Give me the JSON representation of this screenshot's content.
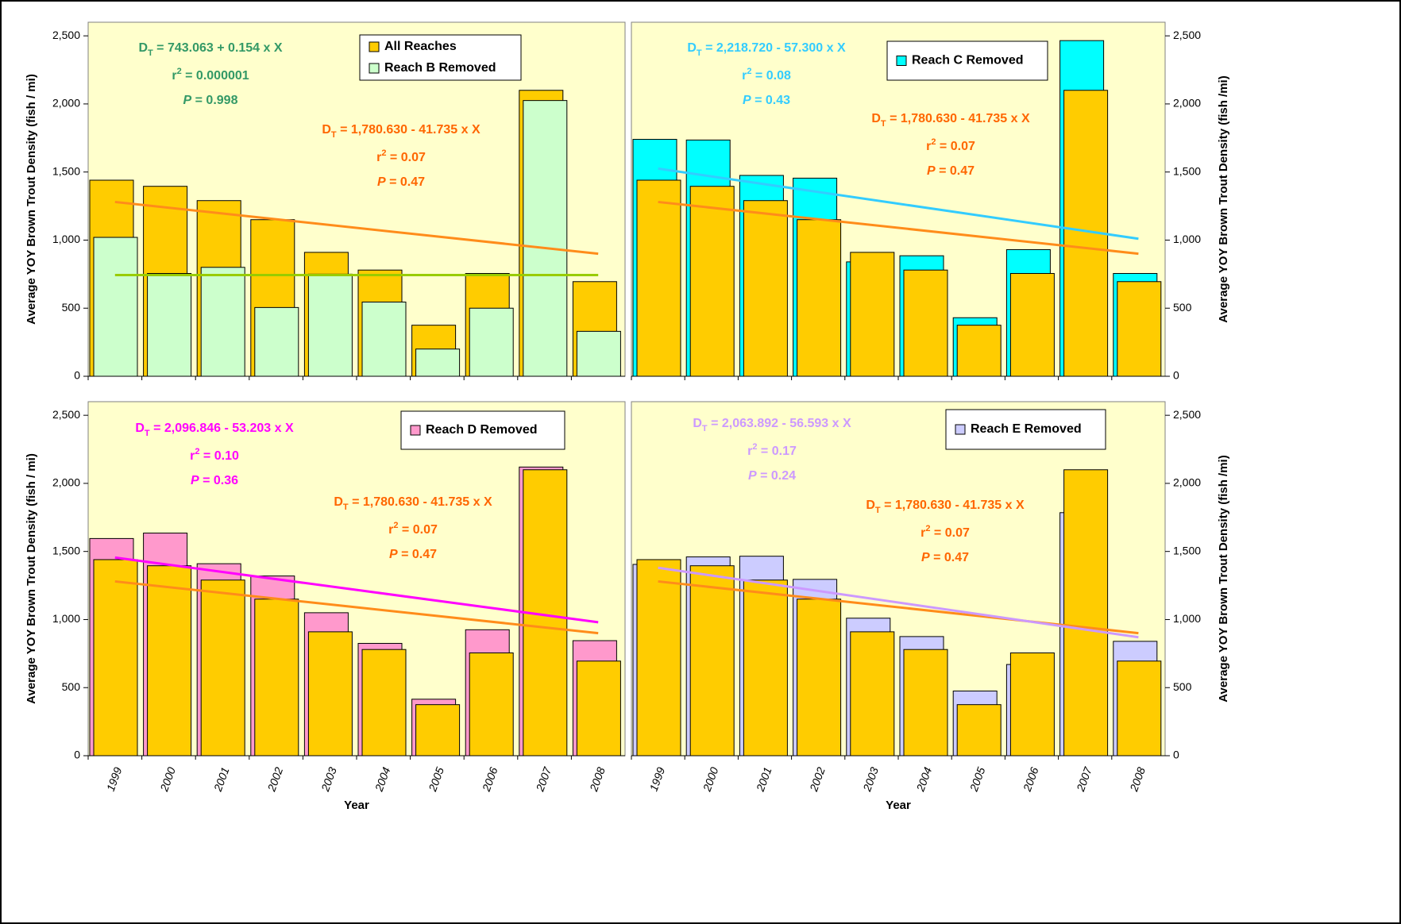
{
  "chart_data": [
    {
      "type": "bar",
      "ylabel": "Average YOY Brown Trout Density (fish / mi)",
      "categories": [
        null,
        null,
        null,
        null,
        null,
        null,
        null,
        null,
        null,
        null
      ],
      "ylim": [
        0,
        2600
      ],
      "yticks": [
        0,
        500,
        {
          "value": 1000,
          "label": "1,000"
        },
        {
          "value": 1500,
          "label": "1,500"
        },
        {
          "value": 2000,
          "label": "2,000"
        },
        {
          "value": 2500,
          "label": "2,500"
        }
      ],
      "series": [
        {
          "name": "All Reaches",
          "color": "#ffcc00",
          "values": [
            1440,
            1395,
            1290,
            1150,
            910,
            780,
            375,
            755,
            2100,
            695
          ]
        },
        {
          "name": "Reach B Removed",
          "color": "#ccffcc",
          "values": [
            1020,
            755,
            800,
            505,
            750,
            545,
            200,
            500,
            2025,
            330
          ]
        }
      ],
      "trendlines": [
        {
          "color": "#ff8c1a",
          "values": [
            1280,
            900
          ]
        },
        {
          "color": "#99cc00",
          "values": [
            743,
            743
          ]
        }
      ],
      "equations": [
        {
          "color": "#339966",
          "d": [
            "D",
            "T",
            " = 743.063 + 0.154 x X"
          ],
          "r": [
            "r",
            "2",
            " = 0.000001"
          ],
          "p": [
            "P",
            " = 0.998"
          ]
        },
        {
          "color": "#ff6600",
          "d": [
            "D",
            "T",
            " = 1,780.630 - 41.735 x X"
          ],
          "r": [
            "r",
            "2",
            " = 0.07"
          ],
          "p": [
            "P",
            " = 0.47"
          ]
        }
      ]
    },
    {
      "type": "bar",
      "ylabel": "Average YOY Brown Trout Density (fish /mi)",
      "categories": [
        null,
        null,
        null,
        null,
        null,
        null,
        null,
        null,
        null,
        null
      ],
      "ylim": [
        0,
        2600
      ],
      "yticks": [
        0,
        500,
        {
          "value": 1000,
          "label": "1,000"
        },
        {
          "value": 1500,
          "label": "1,500"
        },
        {
          "value": 2000,
          "label": "2,000"
        },
        {
          "value": 2500,
          "label": "2,500"
        }
      ],
      "series": [
        {
          "name": "Reach C Removed",
          "color": "#00ffff",
          "values": [
            1740,
            1735,
            1475,
            1455,
            840,
            885,
            430,
            930,
            2465,
            755
          ]
        },
        {
          "color": "#ffcc00",
          "values": [
            1440,
            1395,
            1290,
            1150,
            910,
            780,
            375,
            755,
            2100,
            695
          ]
        }
      ],
      "trendlines": [
        {
          "color": "#ff8c1a",
          "values": [
            1280,
            900
          ]
        },
        {
          "color": "#33ccff",
          "values": [
            1525,
            1010
          ]
        }
      ],
      "equations": [
        {
          "color": "#33ccff",
          "d": [
            "D",
            "T",
            " = 2,218.720 - 57.300 x X"
          ],
          "r": [
            "r",
            "2",
            " = 0.08"
          ],
          "p": [
            "P",
            " = 0.43"
          ]
        },
        {
          "color": "#ff6600",
          "d": [
            "D",
            "T",
            " = 1,780.630 - 41.735 x X"
          ],
          "r": [
            "r",
            "2",
            " = 0.07"
          ],
          "p": [
            "P",
            " = 0.47"
          ]
        }
      ]
    },
    {
      "type": "bar",
      "ylabel": "Average YOY Brown Trout Density (fish / mi)",
      "xlabel": "Year",
      "categories": [
        "1999",
        "2000",
        "2001",
        "2002",
        "2003",
        "2004",
        "2005",
        "2006",
        "2007",
        "2008"
      ],
      "ylim": [
        0,
        2600
      ],
      "yticks": [
        0,
        500,
        {
          "value": 1000,
          "label": "1,000"
        },
        {
          "value": 1500,
          "label": "1,500"
        },
        {
          "value": 2000,
          "label": "2,000"
        },
        {
          "value": 2500,
          "label": "2,500"
        }
      ],
      "series": [
        {
          "name": "Reach D Removed",
          "color": "#ff99cc",
          "values": [
            1595,
            1635,
            1410,
            1320,
            1050,
            825,
            415,
            925,
            2120,
            845
          ]
        },
        {
          "color": "#ffcc00",
          "values": [
            1440,
            1395,
            1290,
            1150,
            910,
            780,
            375,
            755,
            2100,
            695
          ]
        }
      ],
      "trendlines": [
        {
          "color": "#ff8c1a",
          "values": [
            1280,
            900
          ]
        },
        {
          "color": "#ff00ff",
          "values": [
            1455,
            980
          ]
        }
      ],
      "equations": [
        {
          "color": "#ff00ff",
          "d": [
            "D",
            "T",
            " = 2,096.846 - 53.203 x X"
          ],
          "r": [
            "r",
            "2",
            " = 0.10"
          ],
          "p": [
            "P",
            " = 0.36"
          ]
        },
        {
          "color": "#ff6600",
          "d": [
            "D",
            "T",
            " = 1,780.630 - 41.735 x X"
          ],
          "r": [
            "r",
            "2",
            " = 0.07"
          ],
          "p": [
            "P",
            " = 0.47"
          ]
        }
      ]
    },
    {
      "type": "bar",
      "ylabel": "Average YOY Brown Trout Density (fish /mi)",
      "xlabel": "Year",
      "categories": [
        "1999",
        "2000",
        "2001",
        "2002",
        "2003",
        "2004",
        "2005",
        "2006",
        "2007",
        "2008"
      ],
      "ylim": [
        0,
        2600
      ],
      "yticks": [
        0,
        500,
        {
          "value": 1000,
          "label": "1,000"
        },
        {
          "value": 1500,
          "label": "1,500"
        },
        {
          "value": 2000,
          "label": "2,000"
        },
        {
          "value": 2500,
          "label": "2,500"
        }
      ],
      "series": [
        {
          "name": "Reach E Removed",
          "color": "#ccccff",
          "values": [
            1405,
            1460,
            1465,
            1295,
            1010,
            875,
            475,
            670,
            1785,
            840
          ]
        },
        {
          "color": "#ffcc00",
          "values": [
            1440,
            1395,
            1290,
            1150,
            910,
            780,
            375,
            755,
            2100,
            695
          ]
        }
      ],
      "trendlines": [
        {
          "color": "#ff8c1a",
          "values": [
            1280,
            900
          ]
        },
        {
          "color": "#cc99ff",
          "values": [
            1380,
            870
          ]
        }
      ],
      "equations": [
        {
          "color": "#cc99ff",
          "d": [
            "D",
            "T",
            " = 2,063.892 - 56.593 x X"
          ],
          "r": [
            "r",
            "2",
            " = 0.17"
          ],
          "p": [
            "P",
            " = 0.24"
          ]
        },
        {
          "color": "#ff6600",
          "d": [
            "D",
            "T",
            " = 1,780.630 - 41.735 x X"
          ],
          "r": [
            "r",
            "2",
            " = 0.07"
          ],
          "p": [
            "P",
            " = 0.47"
          ]
        }
      ]
    }
  ]
}
